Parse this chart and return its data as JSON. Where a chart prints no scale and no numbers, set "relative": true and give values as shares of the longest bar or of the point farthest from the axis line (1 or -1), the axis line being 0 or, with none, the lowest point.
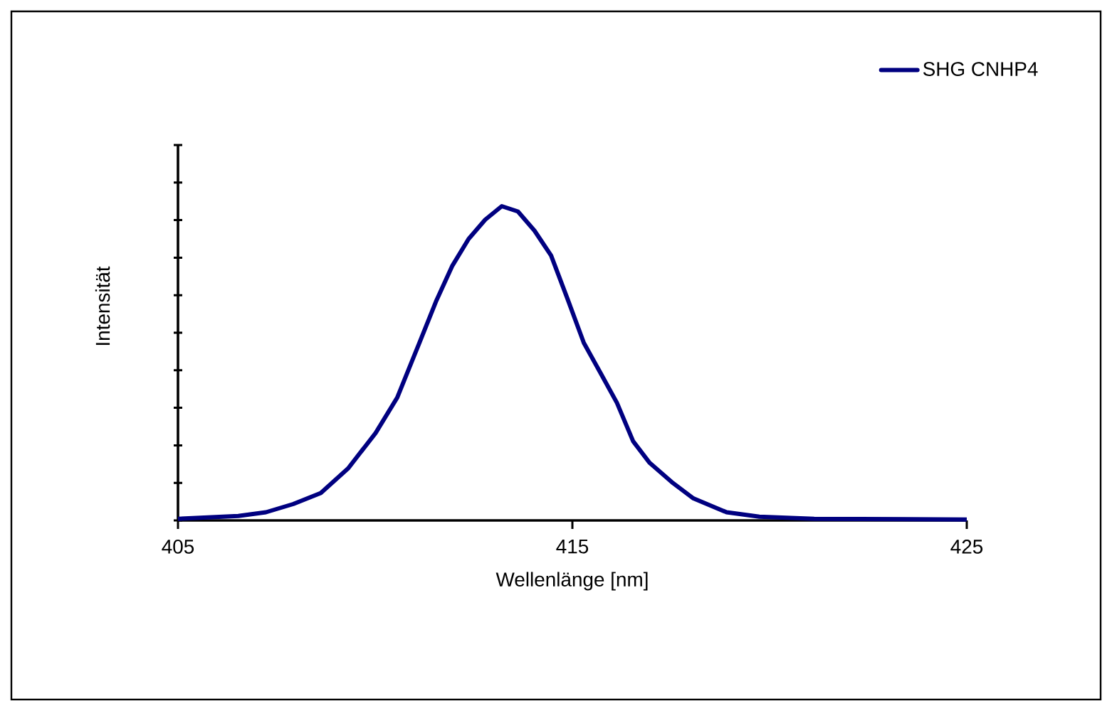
{
  "chart_data": {
    "type": "line",
    "xlabel": "Wellenlänge [nm]",
    "ylabel": "Intensität",
    "relative": true,
    "xlim": [
      405,
      425
    ],
    "xticks": [
      405,
      415,
      425
    ],
    "legend": "top right",
    "x": [
      405.0,
      406.53,
      407.23,
      407.92,
      408.62,
      409.31,
      410.01,
      410.56,
      411.12,
      411.54,
      411.95,
      412.37,
      412.79,
      413.21,
      413.62,
      414.04,
      414.46,
      414.88,
      415.29,
      415.71,
      416.13,
      416.54,
      416.96,
      417.52,
      418.07,
      418.91,
      419.74,
      421.13,
      425.0
    ],
    "series": [
      {
        "name": "SHG CNHP4",
        "color": "#000080",
        "values": [
          0.005,
          0.014,
          0.026,
          0.052,
          0.087,
          0.165,
          0.278,
          0.391,
          0.565,
          0.696,
          0.809,
          0.896,
          0.957,
          1.0,
          0.983,
          0.922,
          0.843,
          0.704,
          0.565,
          0.47,
          0.374,
          0.252,
          0.183,
          0.122,
          0.07,
          0.026,
          0.012,
          0.005,
          0.003
        ]
      }
    ]
  }
}
